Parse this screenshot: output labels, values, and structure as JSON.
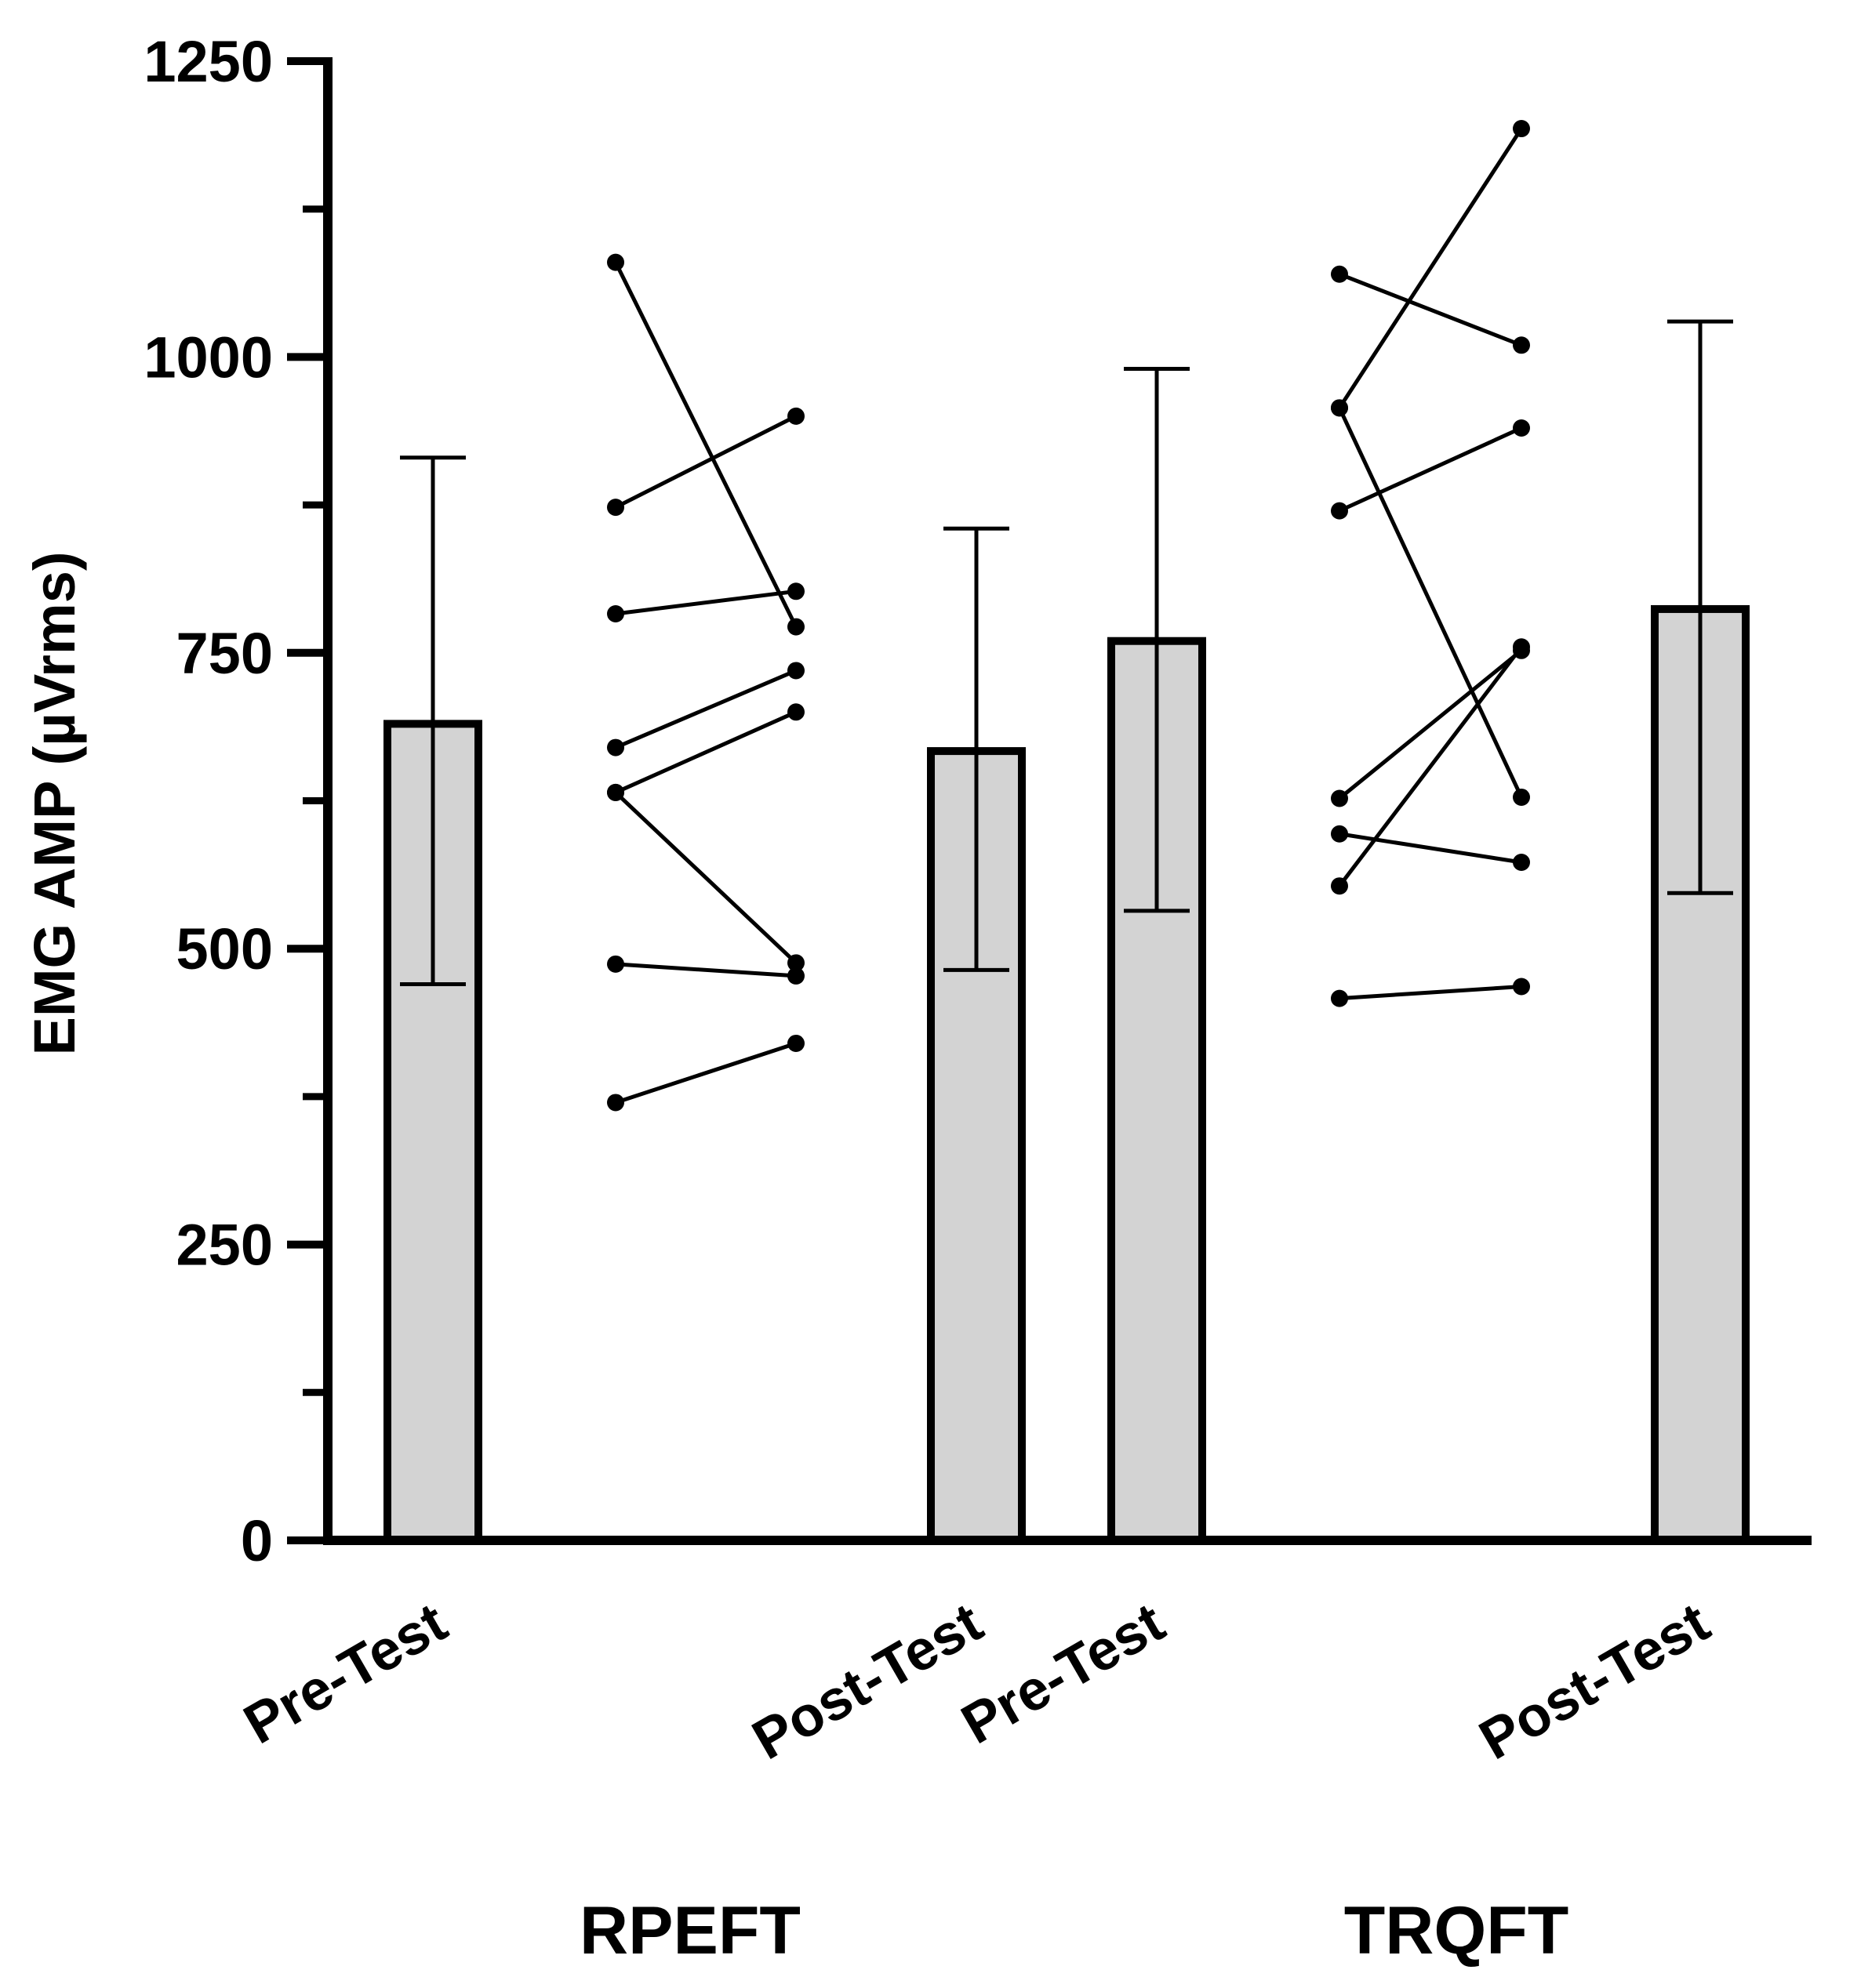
{
  "chart_data": {
    "type": "bar",
    "title": "",
    "xlabel": "",
    "ylabel": "EMG AMP (µVrms)",
    "ylim": [
      0,
      1250
    ],
    "yticks": [
      0,
      250,
      500,
      750,
      1000,
      1250
    ],
    "y_minor_ticks": [
      125,
      375,
      625,
      875,
      1125
    ],
    "grid": false,
    "colors": {
      "bar_fill": "#d3d3d3",
      "stroke": "#000000",
      "background": "#ffffff"
    },
    "bars": [
      {
        "group": "RPEFT",
        "label": "Pre-Test",
        "mean": 690,
        "err_low": 470,
        "err_high": 915
      },
      {
        "group": "RPEFT",
        "label": "Post-Test",
        "mean": 667,
        "err_low": 482,
        "err_high": 855
      },
      {
        "group": "TRQFT",
        "label": "Pre-Test",
        "mean": 760,
        "err_low": 532,
        "err_high": 990
      },
      {
        "group": "TRQFT",
        "label": "Post-Test",
        "mean": 787,
        "err_low": 547,
        "err_high": 1030
      }
    ],
    "groups": [
      "RPEFT",
      "TRQFT"
    ],
    "paired_points": [
      {
        "group": "RPEFT",
        "pairs": [
          [
            1080,
            772
          ],
          [
            873,
            950
          ],
          [
            783,
            802
          ],
          [
            670,
            735
          ],
          [
            632,
            700
          ],
          [
            632,
            488
          ],
          [
            487,
            477
          ],
          [
            370,
            420
          ]
        ]
      },
      {
        "group": "TRQFT",
        "pairs": [
          [
            1070,
            1010
          ],
          [
            957,
            1193
          ],
          [
            957,
            628
          ],
          [
            870,
            940
          ],
          [
            627,
            752
          ],
          [
            597,
            573
          ],
          [
            553,
            755
          ],
          [
            458,
            468
          ]
        ]
      }
    ]
  }
}
